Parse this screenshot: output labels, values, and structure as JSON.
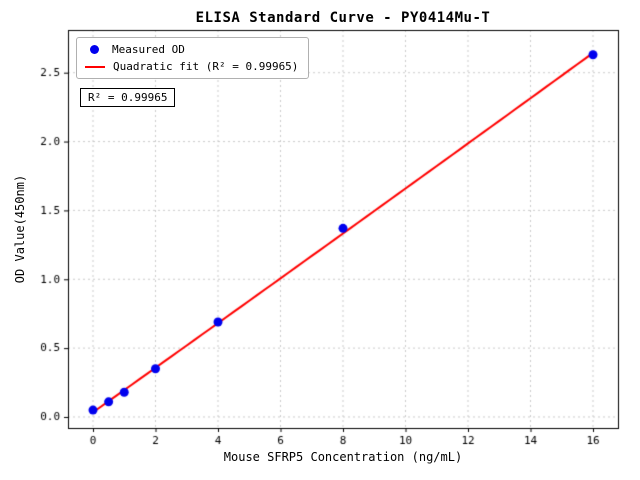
{
  "chart_data": {
    "type": "scatter",
    "title": "ELISA Standard Curve - PY0414Mu-T",
    "xlabel": "Mouse SFRP5 Concentration (ng/mL)",
    "ylabel": "OD Value(450nm)",
    "xlim": [
      -0.8,
      16.8
    ],
    "ylim": [
      -0.08,
      2.81
    ],
    "xticks": [
      0,
      2,
      4,
      6,
      8,
      10,
      12,
      14,
      16
    ],
    "xticklabels": [
      "0",
      "2",
      "4",
      "6",
      "8",
      "10",
      "12",
      "14",
      "16"
    ],
    "yticks": [
      0.0,
      0.5,
      1.0,
      1.5,
      2.0,
      2.5
    ],
    "yticklabels": [
      "0.0",
      "0.5",
      "1.0",
      "1.5",
      "2.0",
      "2.5"
    ],
    "grid": true,
    "grid_style": "dashed",
    "grid_color": "#bfbfbf",
    "legend_position": "upper left",
    "series": [
      {
        "name": "Measured OD",
        "type": "scatter",
        "color": "#0000ee",
        "x": [
          0,
          0.5,
          1,
          2,
          4,
          8,
          16
        ],
        "y": [
          0.05,
          0.11,
          0.18,
          0.35,
          0.69,
          1.37,
          2.63
        ]
      },
      {
        "name": "Quadratic fit (R² = 0.99965)",
        "type": "line",
        "color": "#ff0000",
        "fit": {
          "kind": "quadratic",
          "a": 0.0001,
          "b": 0.1615,
          "c": 0.034,
          "x_range": [
            0,
            16
          ]
        },
        "r_squared": 0.99965
      }
    ],
    "annotation": "R² = 0.99965"
  }
}
